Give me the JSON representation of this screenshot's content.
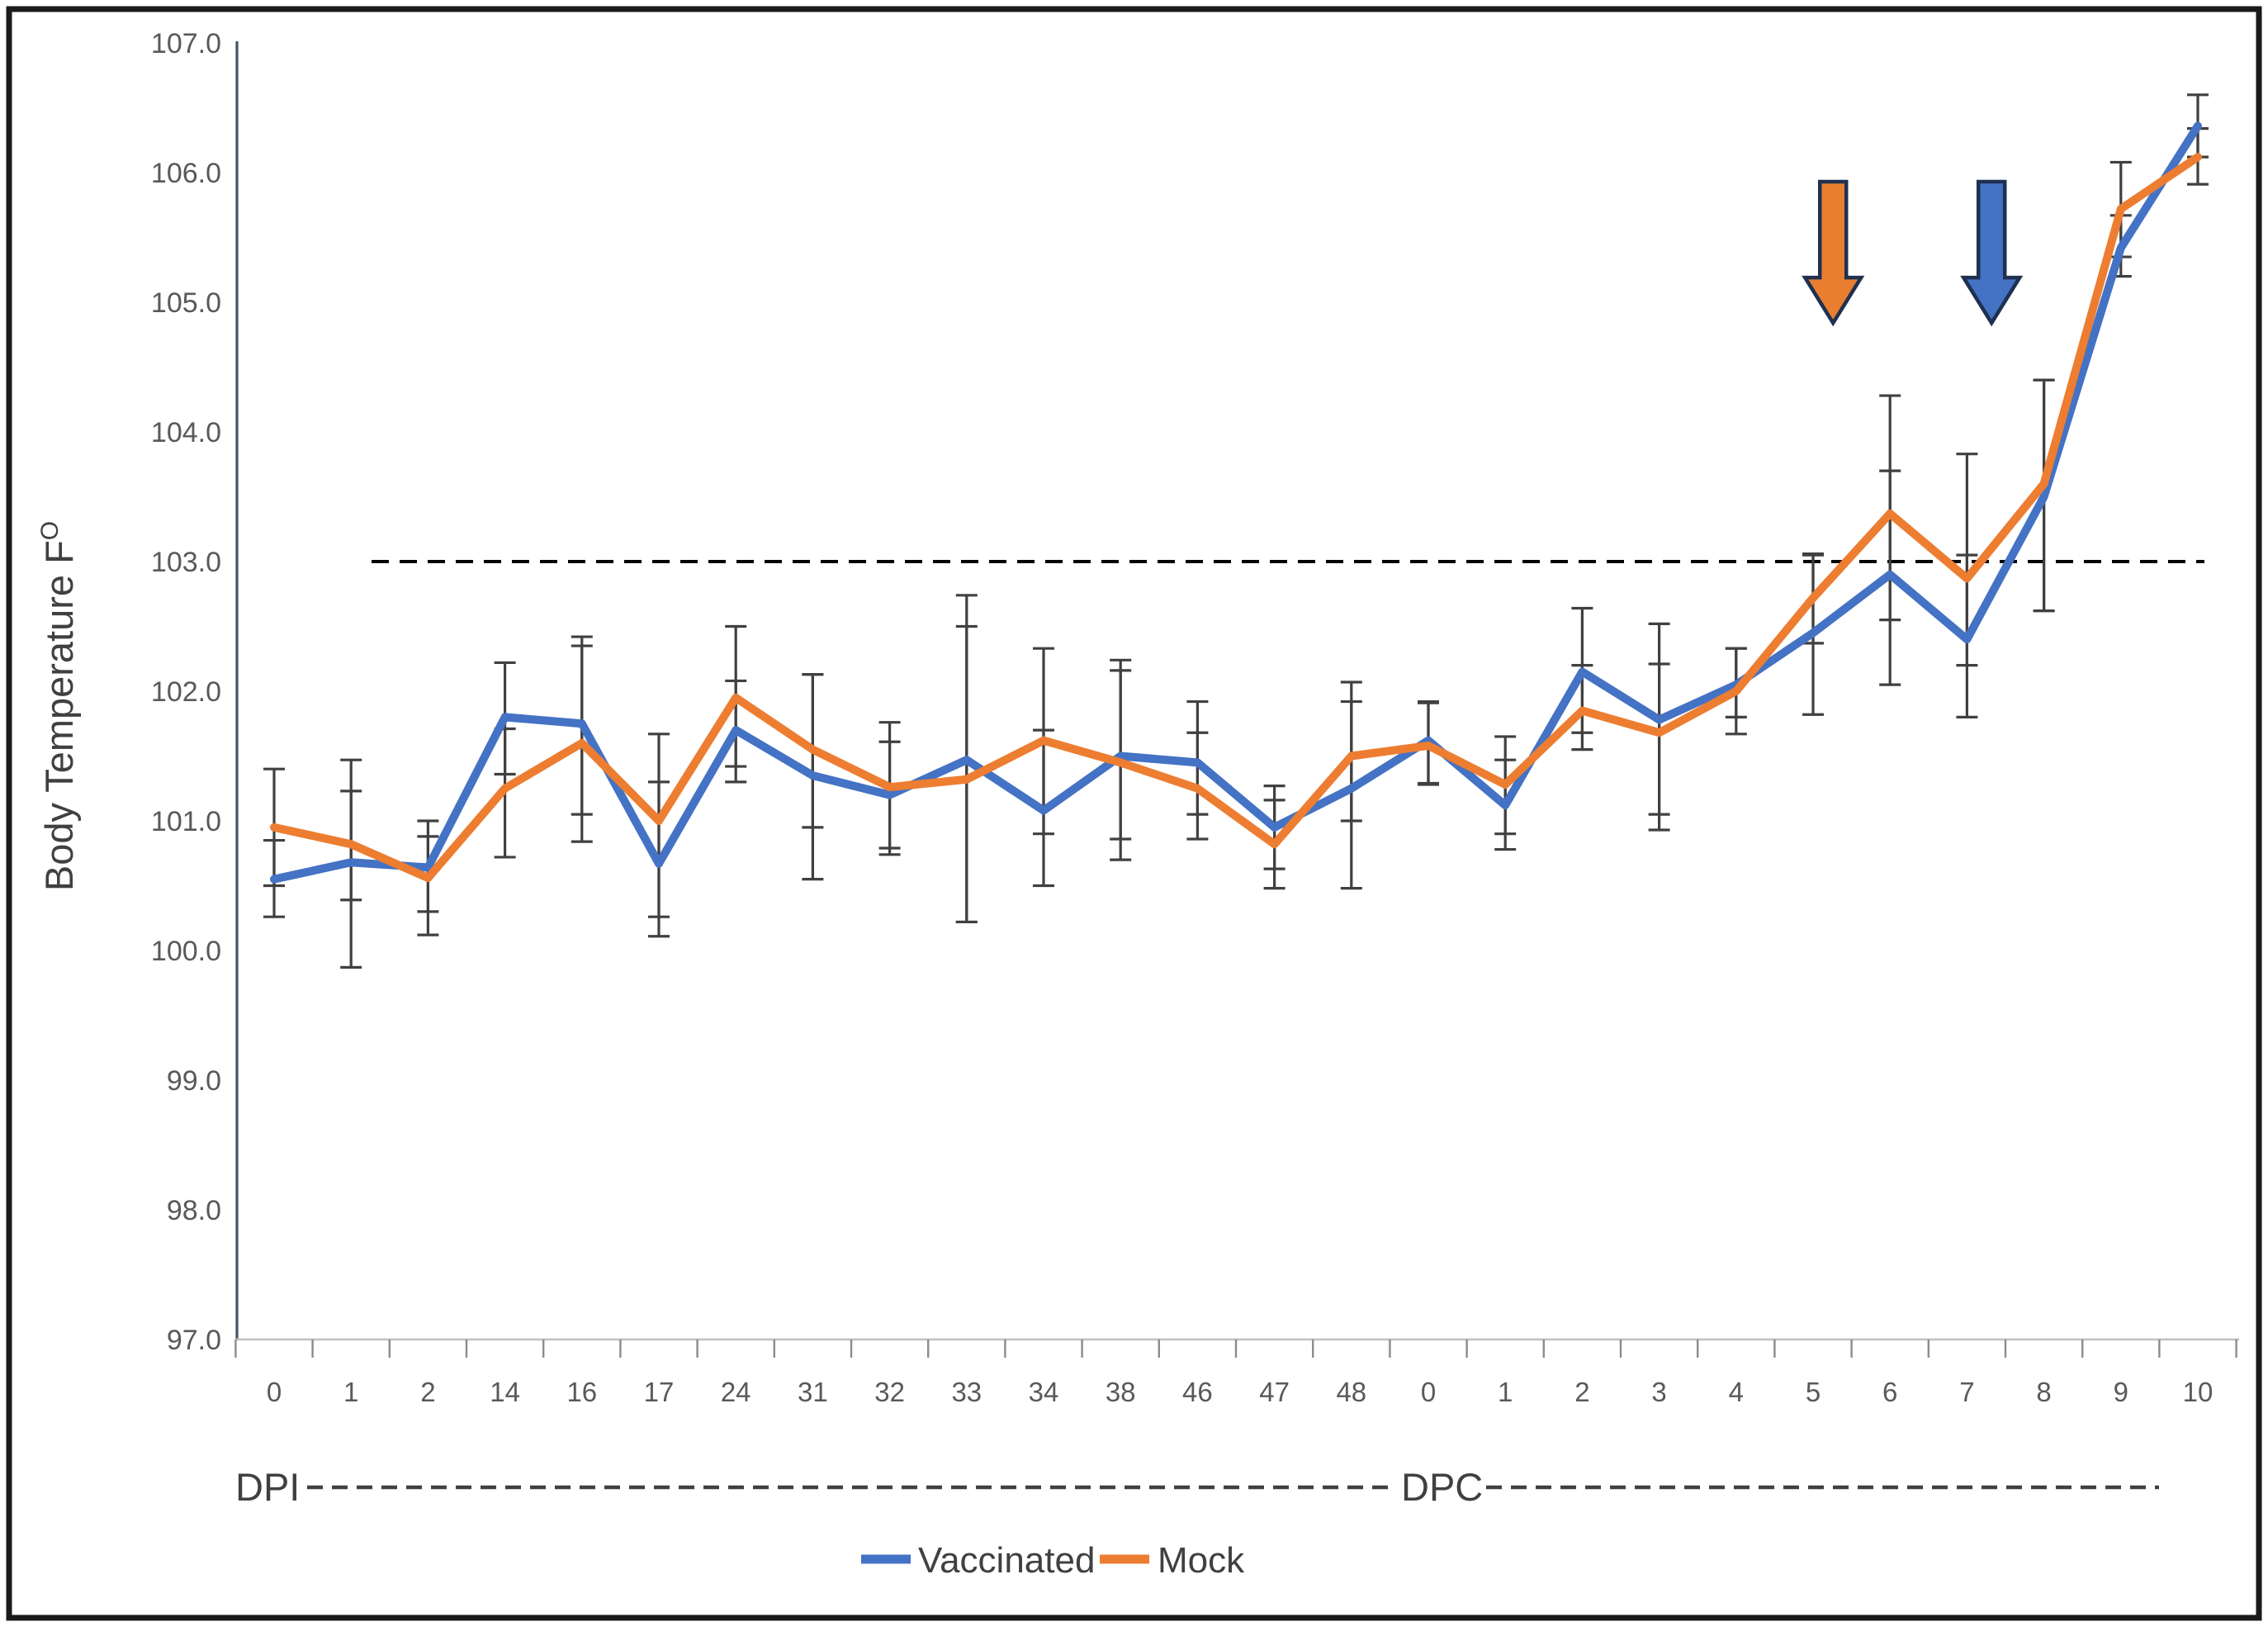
{
  "chart_data": {
    "type": "line",
    "title": "",
    "ylabel_main": "Body Temperature F",
    "ylabel_sup": "O",
    "ylim": [
      97.0,
      107.0
    ],
    "y_ticks": [
      97.0,
      98.0,
      99.0,
      100.0,
      101.0,
      102.0,
      103.0,
      104.0,
      105.0,
      106.0,
      107.0
    ],
    "y_tick_format_decimals": 1,
    "grid": false,
    "categories": [
      "0",
      "1",
      "2",
      "14",
      "16",
      "17",
      "24",
      "31",
      "32",
      "33",
      "34",
      "38",
      "46",
      "47",
      "48",
      "0",
      "1",
      "2",
      "3",
      "4",
      "5",
      "6",
      "7",
      "8",
      "9",
      "10"
    ],
    "x_axis_groups": {
      "dpi_label": "DPI",
      "dpc_label": "DPC",
      "dpc_start_index": 15
    },
    "threshold": {
      "value": 103.0,
      "style": "dashed",
      "color": "#000000"
    },
    "legend_position": "bottom-center",
    "series": [
      {
        "name": "Vaccinated",
        "color": "#4472C4",
        "values": [
          100.55,
          100.68,
          100.64,
          101.8,
          101.75,
          100.67,
          101.7,
          101.35,
          101.2,
          101.47,
          101.08,
          101.5,
          101.45,
          100.95,
          101.25,
          101.62,
          101.12,
          102.15,
          101.78,
          102.05,
          102.45,
          102.9,
          102.4,
          103.5,
          105.42,
          106.36
        ],
        "err_plus": [
          0.3,
          0.79,
          0.36,
          0.42,
          0.67,
          0.63,
          0.38,
          0.78,
          0.41,
          1.27,
          0.62,
          0.74,
          0.47,
          0.32,
          0.67,
          0.3,
          0.35,
          0.49,
          0.74,
          0.28,
          0.6,
          0.8,
          0.65,
          0.9,
          0.25,
          0.24
        ],
        "err_minus": [
          0.29,
          0.81,
          0.34,
          0.44,
          0.7,
          0.56,
          0.4,
          0.8,
          0.41,
          1.25,
          0.58,
          0.64,
          0.4,
          0.32,
          0.77,
          0.33,
          0.34,
          0.47,
          0.73,
          0.25,
          0.63,
          0.85,
          0.6,
          0.88,
          0.22,
          0.24
        ]
      },
      {
        "name": "Mock",
        "color": "#ED7D31",
        "values": [
          100.95,
          100.82,
          100.56,
          101.25,
          101.6,
          101.0,
          101.95,
          101.55,
          101.26,
          101.32,
          101.62,
          101.45,
          101.25,
          100.82,
          101.5,
          101.58,
          101.28,
          101.85,
          101.68,
          102.0,
          102.72,
          103.37,
          102.87,
          103.6,
          105.72,
          106.12
        ],
        "err_plus": [
          0.45,
          0.41,
          0.32,
          0.46,
          0.75,
          0.67,
          0.55,
          0.58,
          0.5,
          1.18,
          0.71,
          0.71,
          0.43,
          0.34,
          0.57,
          0.33,
          0.37,
          0.35,
          0.53,
          0.33,
          0.34,
          0.91,
          0.96,
          0.8,
          0.36,
          0.22
        ],
        "err_minus": [
          0.45,
          0.43,
          0.44,
          0.53,
          0.76,
          0.74,
          0.53,
          0.6,
          0.52,
          1.1,
          0.72,
          0.75,
          0.39,
          0.34,
          0.5,
          0.3,
          0.38,
          0.3,
          0.75,
          0.33,
          0.35,
          0.82,
          0.67,
          0.98,
          0.37,
          0.21
        ]
      }
    ],
    "annotations": {
      "arrows": [
        {
          "name": "mock-challenge-arrow",
          "series": "Mock",
          "fill": "#E97E30",
          "x_index": 20.26,
          "top_value": 105.93,
          "tip_value": 104.84
        },
        {
          "name": "vaccinated-challenge-arrow",
          "series": "Vaccinated",
          "fill": "#4472C4",
          "x_index": 22.32,
          "top_value": 105.93,
          "tip_value": 104.84
        }
      ]
    },
    "colors": {
      "error_bar": "#404040",
      "y_axis_line": "#44546A",
      "x_axis_line": "#BFBFBF",
      "tick_mark": "#8C8C8C",
      "tick_label": "#595959",
      "text": "#404040",
      "arrow_outline": "#1F3050",
      "frame_border": "#1A1A1A"
    }
  }
}
